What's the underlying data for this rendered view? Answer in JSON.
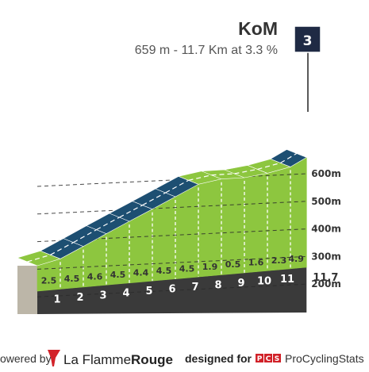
{
  "header": {
    "title": "KoM",
    "subtitle": "659 m - 11.7 Km at 3.3 %",
    "category_badge": "3"
  },
  "footer": {
    "powered_by_text": "owered by",
    "brand_light": "La Flamme",
    "brand_bold": "Rouge",
    "designed_for_text": "designed for",
    "pcs_logo_letters": [
      "P",
      "C",
      "S"
    ],
    "pcs_name": "ProCyclingStats"
  },
  "colors": {
    "profile_fill": "#8dc63f",
    "steep_fill": "#1d4f72",
    "base_band": "#3a3a3a",
    "shadow_side": "#bcb6a8",
    "flag_red": "#d2232a",
    "pcs_red": "#d12128"
  },
  "chart_data": {
    "type": "area",
    "title": "KoM",
    "subtitle": "659 m - 11.7 Km at 3.3 %",
    "xlabel": "",
    "ylabel": "",
    "x_unit": "km",
    "y_unit": "m",
    "ylim": [
      0,
      659
    ],
    "xlim": [
      0,
      11.7
    ],
    "total_distance_label": "11.7",
    "km_markers": [
      "1",
      "2",
      "3",
      "4",
      "5",
      "6",
      "7",
      "8",
      "9",
      "10",
      "11"
    ],
    "segments": [
      {
        "from": 0,
        "to": 1,
        "gradient": 2.5,
        "gradient_label": "2.5"
      },
      {
        "from": 1,
        "to": 2,
        "gradient": 4.5,
        "gradient_label": "4.5"
      },
      {
        "from": 2,
        "to": 3,
        "gradient": 4.6,
        "gradient_label": "4.6"
      },
      {
        "from": 3,
        "to": 4,
        "gradient": 4.5,
        "gradient_label": "4.5"
      },
      {
        "from": 4,
        "to": 5,
        "gradient": 4.4,
        "gradient_label": "4.4"
      },
      {
        "from": 5,
        "to": 6,
        "gradient": 4.5,
        "gradient_label": "4.5"
      },
      {
        "from": 6,
        "to": 7,
        "gradient": 4.5,
        "gradient_label": "4.5"
      },
      {
        "from": 7,
        "to": 8,
        "gradient": 1.9,
        "gradient_label": "1.9"
      },
      {
        "from": 8,
        "to": 9,
        "gradient": 0.5,
        "gradient_label": "0.5"
      },
      {
        "from": 9,
        "to": 10,
        "gradient": 1.6,
        "gradient_label": "1.6"
      },
      {
        "from": 10,
        "to": 11,
        "gradient": 2.3,
        "gradient_label": "2.3"
      },
      {
        "from": 11,
        "to": 11.7,
        "gradient": 4.9,
        "gradient_label": "4.9"
      }
    ],
    "altitude_ticks": [
      {
        "value": 200,
        "label": "200m"
      },
      {
        "value": 300,
        "label": "300m"
      },
      {
        "value": 400,
        "label": "400m"
      },
      {
        "value": 500,
        "label": "500m"
      },
      {
        "value": 600,
        "label": "600m"
      }
    ],
    "summit_altitude": 659,
    "steep_threshold_pct": 4.4,
    "grid": true
  }
}
